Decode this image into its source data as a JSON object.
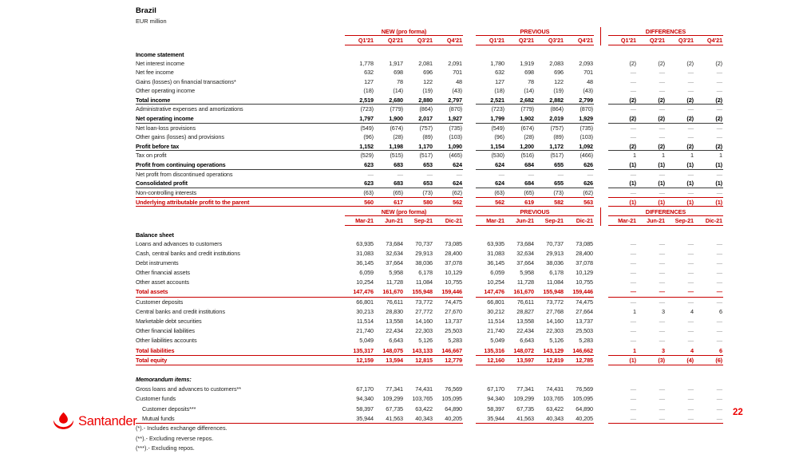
{
  "page": {
    "title": "Brazil",
    "subtitle": "EUR million",
    "page_number": "22",
    "brand": "Santander"
  },
  "colors": {
    "table_red": "#C90000",
    "logo_red": "#EC0000",
    "text": "#1d1d1b",
    "dash_gray": "#8d8d8d"
  },
  "tables": [
    {
      "id": "income-statement",
      "section_label": "Income statement",
      "groups": [
        "NEW (pro forma)",
        "PREVIOUS",
        "DIFFERENCES"
      ],
      "columns": [
        "Q1'21",
        "Q2'21",
        "Q3'21",
        "Q4'21"
      ],
      "rows": [
        {
          "label": "Net interest income",
          "cls": "",
          "line": "",
          "newv": [
            "1,778",
            "1,917",
            "2,081",
            "2,091"
          ],
          "prevv": [
            "1,780",
            "1,919",
            "2,083",
            "2,093"
          ],
          "diffv": [
            "(2)",
            "(2)",
            "(2)",
            "(2)"
          ]
        },
        {
          "label": "Net fee income",
          "cls": "",
          "line": "",
          "newv": [
            "632",
            "698",
            "696",
            "701"
          ],
          "prevv": [
            "632",
            "698",
            "696",
            "701"
          ],
          "diffv": [
            "—",
            "—",
            "—",
            "—"
          ]
        },
        {
          "label": "Gains (losses) on financial transactions*",
          "cls": "",
          "line": "",
          "newv": [
            "127",
            "78",
            "122",
            "48"
          ],
          "prevv": [
            "127",
            "78",
            "122",
            "48"
          ],
          "diffv": [
            "—",
            "—",
            "—",
            "—"
          ]
        },
        {
          "label": "Other operating income",
          "cls": "",
          "line": "",
          "newv": [
            "(18)",
            "(14)",
            "(19)",
            "(43)"
          ],
          "prevv": [
            "(18)",
            "(14)",
            "(19)",
            "(43)"
          ],
          "diffv": [
            "—",
            "—",
            "—",
            "—"
          ]
        },
        {
          "label": "Total income",
          "cls": "b",
          "line": "g",
          "newv": [
            "2,519",
            "2,680",
            "2,880",
            "2,797"
          ],
          "prevv": [
            "2,521",
            "2,682",
            "2,882",
            "2,799"
          ],
          "diffv": [
            "(2)",
            "(2)",
            "(2)",
            "(2)"
          ]
        },
        {
          "label": "Administrative expenses and amortizations",
          "cls": "",
          "line": "",
          "newv": [
            "(723)",
            "(779)",
            "(864)",
            "(870)"
          ],
          "prevv": [
            "(723)",
            "(779)",
            "(864)",
            "(870)"
          ],
          "diffv": [
            "—",
            "—",
            "—",
            "—"
          ]
        },
        {
          "label": "Net operating income",
          "cls": "b",
          "line": "g",
          "newv": [
            "1,797",
            "1,900",
            "2,017",
            "1,927"
          ],
          "prevv": [
            "1,799",
            "1,902",
            "2,019",
            "1,929"
          ],
          "diffv": [
            "(2)",
            "(2)",
            "(2)",
            "(2)"
          ]
        },
        {
          "label": "Net loan-loss provisions",
          "cls": "",
          "line": "",
          "newv": [
            "(549)",
            "(674)",
            "(757)",
            "(735)"
          ],
          "prevv": [
            "(549)",
            "(674)",
            "(757)",
            "(735)"
          ],
          "diffv": [
            "—",
            "—",
            "—",
            "—"
          ]
        },
        {
          "label": "Other gains (losses) and provisions",
          "cls": "",
          "line": "",
          "newv": [
            "(96)",
            "(28)",
            "(89)",
            "(103)"
          ],
          "prevv": [
            "(96)",
            "(28)",
            "(89)",
            "(103)"
          ],
          "diffv": [
            "—",
            "—",
            "—",
            "—"
          ]
        },
        {
          "label": "Profit before tax",
          "cls": "b",
          "line": "g",
          "newv": [
            "1,152",
            "1,198",
            "1,170",
            "1,090"
          ],
          "prevv": [
            "1,154",
            "1,200",
            "1,172",
            "1,092"
          ],
          "diffv": [
            "(2)",
            "(2)",
            "(2)",
            "(2)"
          ]
        },
        {
          "label": "Tax on profit",
          "cls": "",
          "line": "",
          "newv": [
            "(529)",
            "(515)",
            "(517)",
            "(465)"
          ],
          "prevv": [
            "(530)",
            "(516)",
            "(517)",
            "(466)"
          ],
          "diffv": [
            "1",
            "1",
            "1",
            "1"
          ]
        },
        {
          "label": "Profit from continuing operations",
          "cls": "b",
          "line": "g",
          "newv": [
            "623",
            "683",
            "653",
            "624"
          ],
          "prevv": [
            "624",
            "684",
            "655",
            "626"
          ],
          "diffv": [
            "(1)",
            "(1)",
            "(1)",
            "(1)"
          ]
        },
        {
          "label": "Net profit from discontinued operations",
          "cls": "",
          "line": "",
          "newv": [
            "—",
            "—",
            "—",
            "—"
          ],
          "prevv": [
            "—",
            "—",
            "—",
            "—"
          ],
          "diffv": [
            "—",
            "—",
            "—",
            "—"
          ]
        },
        {
          "label": "Consolidated profit",
          "cls": "b",
          "line": "g",
          "newv": [
            "623",
            "683",
            "653",
            "624"
          ],
          "prevv": [
            "624",
            "684",
            "655",
            "626"
          ],
          "diffv": [
            "(1)",
            "(1)",
            "(1)",
            "(1)"
          ]
        },
        {
          "label": "Non-controlling interests",
          "cls": "",
          "line": "",
          "newv": [
            "(63)",
            "(65)",
            "(73)",
            "(62)"
          ],
          "prevv": [
            "(63)",
            "(65)",
            "(73)",
            "(62)"
          ],
          "diffv": [
            "—",
            "—",
            "—",
            "—"
          ]
        },
        {
          "label": "Underlying attributable profit to the parent",
          "cls": "rb",
          "line": "box",
          "newv": [
            "560",
            "617",
            "580",
            "562"
          ],
          "prevv": [
            "562",
            "619",
            "582",
            "563"
          ],
          "diffv": [
            "(1)",
            "(1)",
            "(1)",
            "(1)"
          ]
        }
      ]
    },
    {
      "id": "balance-sheet",
      "section_label": "Balance sheet",
      "groups": [
        "NEW (pro forma)",
        "PREVIOUS",
        "DIFFERENCES"
      ],
      "columns": [
        "Mar-21",
        "Jun-21",
        "Sep-21",
        "Dic-21"
      ],
      "rows": [
        {
          "label": "Loans and advances to customers",
          "cls": "",
          "line": "",
          "newv": [
            "63,935",
            "73,684",
            "70,737",
            "73,085"
          ],
          "prevv": [
            "63,935",
            "73,684",
            "70,737",
            "73,085"
          ],
          "diffv": [
            "—",
            "—",
            "—",
            "—"
          ]
        },
        {
          "label": "Cash, central banks and credit institutions",
          "cls": "",
          "line": "",
          "newv": [
            "31,083",
            "32,634",
            "29,913",
            "28,400"
          ],
          "prevv": [
            "31,083",
            "32,634",
            "29,913",
            "28,400"
          ],
          "diffv": [
            "—",
            "—",
            "—",
            "—"
          ]
        },
        {
          "label": "Debt instruments",
          "cls": "",
          "line": "",
          "newv": [
            "36,145",
            "37,664",
            "38,036",
            "37,078"
          ],
          "prevv": [
            "36,145",
            "37,664",
            "38,036",
            "37,078"
          ],
          "diffv": [
            "—",
            "—",
            "—",
            "—"
          ]
        },
        {
          "label": "Other financial assets",
          "cls": "",
          "line": "",
          "newv": [
            "6,059",
            "5,958",
            "6,178",
            "10,129"
          ],
          "prevv": [
            "6,059",
            "5,958",
            "6,178",
            "10,129"
          ],
          "diffv": [
            "—",
            "—",
            "—",
            "—"
          ]
        },
        {
          "label": "Other asset accounts",
          "cls": "",
          "line": "",
          "newv": [
            "10,254",
            "11,728",
            "11,084",
            "10,755"
          ],
          "prevv": [
            "10,254",
            "11,728",
            "11,084",
            "10,755"
          ],
          "diffv": [
            "—",
            "—",
            "—",
            "—"
          ]
        },
        {
          "label": "Total assets",
          "cls": "rb",
          "line": "r",
          "newv": [
            "147,476",
            "161,670",
            "155,948",
            "159,446"
          ],
          "prevv": [
            "147,476",
            "161,670",
            "155,948",
            "159,446"
          ],
          "diffv": [
            "—",
            "—",
            "—",
            "—"
          ]
        },
        {
          "label": "Customer deposits",
          "cls": "",
          "line": "",
          "newv": [
            "66,801",
            "76,611",
            "73,772",
            "74,475"
          ],
          "prevv": [
            "66,801",
            "76,611",
            "73,772",
            "74,475"
          ],
          "diffv": [
            "—",
            "—",
            "—",
            "—"
          ]
        },
        {
          "label": "Central banks and credit institutions",
          "cls": "",
          "line": "",
          "newv": [
            "30,213",
            "28,830",
            "27,772",
            "27,670"
          ],
          "prevv": [
            "30,212",
            "28,827",
            "27,768",
            "27,664"
          ],
          "diffv": [
            "1",
            "3",
            "4",
            "6"
          ]
        },
        {
          "label": "Marketable debt securities",
          "cls": "",
          "line": "",
          "newv": [
            "11,514",
            "13,558",
            "14,160",
            "13,737"
          ],
          "prevv": [
            "11,514",
            "13,558",
            "14,160",
            "13,737"
          ],
          "diffv": [
            "—",
            "—",
            "—",
            "—"
          ]
        },
        {
          "label": "Other financial liabilities",
          "cls": "",
          "line": "",
          "newv": [
            "21,740",
            "22,434",
            "22,303",
            "25,503"
          ],
          "prevv": [
            "21,740",
            "22,434",
            "22,303",
            "25,503"
          ],
          "diffv": [
            "—",
            "—",
            "—",
            "—"
          ]
        },
        {
          "label": "Other liabilities accounts",
          "cls": "",
          "line": "",
          "newv": [
            "5,049",
            "6,643",
            "5,126",
            "5,283"
          ],
          "prevv": [
            "5,049",
            "6,643",
            "5,126",
            "5,283"
          ],
          "diffv": [
            "—",
            "—",
            "—",
            "—"
          ]
        },
        {
          "label": "Total liabilities",
          "cls": "rb",
          "line": "r",
          "newv": [
            "135,317",
            "148,075",
            "143,133",
            "146,667"
          ],
          "prevv": [
            "135,316",
            "148,072",
            "143,129",
            "146,662"
          ],
          "diffv": [
            "1",
            "3",
            "4",
            "6"
          ]
        },
        {
          "label": "Total equity",
          "cls": "rb",
          "line": "r",
          "newv": [
            "12,159",
            "13,594",
            "12,815",
            "12,779"
          ],
          "prevv": [
            "12,160",
            "13,597",
            "12,819",
            "12,785"
          ],
          "diffv": [
            "(1)",
            "(3)",
            "(4)",
            "(6)"
          ]
        },
        {
          "spacer": true
        },
        {
          "label": "Memorandum items:",
          "cls": "it",
          "line": "",
          "newv": [],
          "prevv": [],
          "diffv": []
        },
        {
          "label": "Gross loans and advances to customers**",
          "cls": "",
          "line": "",
          "newv": [
            "67,170",
            "77,341",
            "74,431",
            "76,569"
          ],
          "prevv": [
            "67,170",
            "77,341",
            "74,431",
            "76,569"
          ],
          "diffv": [
            "—",
            "—",
            "—",
            "—"
          ]
        },
        {
          "label": "Customer funds",
          "cls": "",
          "line": "",
          "newv": [
            "94,340",
            "109,299",
            "103,765",
            "105,095"
          ],
          "prevv": [
            "94,340",
            "109,299",
            "103,765",
            "105,095"
          ],
          "diffv": [
            "—",
            "—",
            "—",
            "—"
          ]
        },
        {
          "label": "Customer deposits***",
          "cls": "",
          "line": "",
          "indent": true,
          "newv": [
            "58,397",
            "67,735",
            "63,422",
            "64,890"
          ],
          "prevv": [
            "58,397",
            "67,735",
            "63,422",
            "64,890"
          ],
          "diffv": [
            "—",
            "—",
            "—",
            "—"
          ]
        },
        {
          "label": "Mutual funds",
          "cls": "",
          "line": "r",
          "indent": true,
          "newv": [
            "35,944",
            "41,563",
            "40,343",
            "40,205"
          ],
          "prevv": [
            "35,944",
            "41,563",
            "40,343",
            "40,205"
          ],
          "diffv": [
            "—",
            "—",
            "—",
            "—"
          ]
        }
      ]
    }
  ],
  "footnotes": [
    "(*).- Includes exchange differences.",
    "(**).- Excluding reverse repos.",
    "(***).- Excluding repos."
  ]
}
